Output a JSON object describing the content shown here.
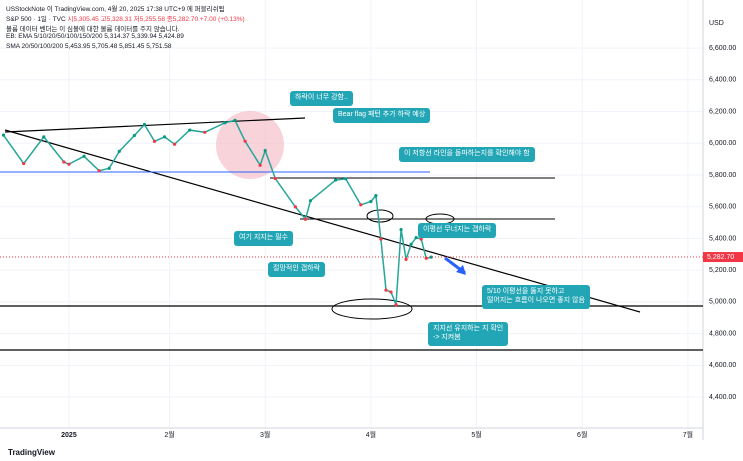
{
  "header": {
    "publisher": "USStockNote 이 TradingView.com, 4월 20, 2025 17:38 UTC+9 에 퍼블리쉬됨",
    "symbol": "S&P 500 · 1일 · TVC",
    "ohlc": "시5,305.45 고5,328.31 저5,255.58 종5,282.70 +7.00 (+0.13%)",
    "volume_note": "볼륨 데이터 벤더는 이 심볼에 대한 볼륨 데이터를 주지 않습니다.",
    "ema": "EB: EMA 5/10/20/50/100/150/200 5,314.37 5,339.94 5,424.89",
    "sma": "SMA 20/50/100/200 5,453.95 5,705.48 5,851.45 5,751.58"
  },
  "chart_data": {
    "type": "line",
    "currency": "USD",
    "color": "#26a69a",
    "x": [
      -13,
      -9,
      -5,
      -1,
      0,
      3,
      6,
      8,
      10,
      13,
      15,
      17,
      19,
      21,
      24,
      27,
      31,
      33,
      35,
      38,
      39,
      41,
      45,
      47,
      48,
      53,
      55,
      58,
      60,
      61,
      62,
      63,
      64,
      65,
      66,
      67,
      68,
      69,
      70,
      71,
      72
    ],
    "values": [
      6051,
      5872,
      6040,
      5882,
      5868,
      5918,
      5827,
      5842,
      5949,
      6049,
      6118,
      6012,
      6040,
      5994,
      6083,
      6069,
      6129,
      6144,
      6013,
      5861,
      5954,
      5778,
      5599,
      5521,
      5638,
      5768,
      5776,
      5612,
      5633,
      5670,
      5396,
      5074,
      5062,
      4982,
      5456,
      5268,
      5363,
      5405,
      5396,
      5275,
      5282
    ],
    "xlim": [
      -13.7,
      126
    ],
    "xticks": [
      {
        "value": 0,
        "label": "2025"
      },
      {
        "value": 20,
        "label": "2월"
      },
      {
        "value": 39,
        "label": "3월"
      },
      {
        "value": 60,
        "label": "4월"
      },
      {
        "value": 81,
        "label": "5월"
      },
      {
        "value": 102,
        "label": "6월"
      },
      {
        "value": 123,
        "label": "7월"
      }
    ],
    "ylim": [
      4205,
      6903
    ],
    "yticks": [
      {
        "value": 6600,
        "label": "6,600.00"
      },
      {
        "value": 6400,
        "label": "6,400.00"
      },
      {
        "value": 6200,
        "label": "6,200.00"
      },
      {
        "value": 6000,
        "label": "6,000.00"
      },
      {
        "value": 5800,
        "label": "5,800.00"
      },
      {
        "value": 5600,
        "label": "5,600.00"
      },
      {
        "value": 5400,
        "label": "5,400.00"
      },
      {
        "value": 5200,
        "label": "5,200.00"
      },
      {
        "value": 5000,
        "label": "5,000.00"
      },
      {
        "value": 4800,
        "label": "4,800.00"
      },
      {
        "value": 4600,
        "label": "4,600.00"
      },
      {
        "value": 4400,
        "label": "4,400.00"
      }
    ],
    "last_price": {
      "value": 5282.7,
      "label": "5,282.70"
    },
    "annotations": [
      "하락이 너무 강함..",
      "Bear flag 패턴 추가 하락 예상",
      "이 저항선 라인을 돌파하는지를 확인해야 함",
      "여기 지지는 필수",
      "이평선 무너지는 갭하락",
      "절망적인 갭하락",
      "5/10 이평선을 뚫지 못하고\n떨어지는 흐름이 나오면 좋지 않음",
      "지지선 유지하는 지 확인\n-> 지켜봄"
    ]
  },
  "footer": "TradingView"
}
